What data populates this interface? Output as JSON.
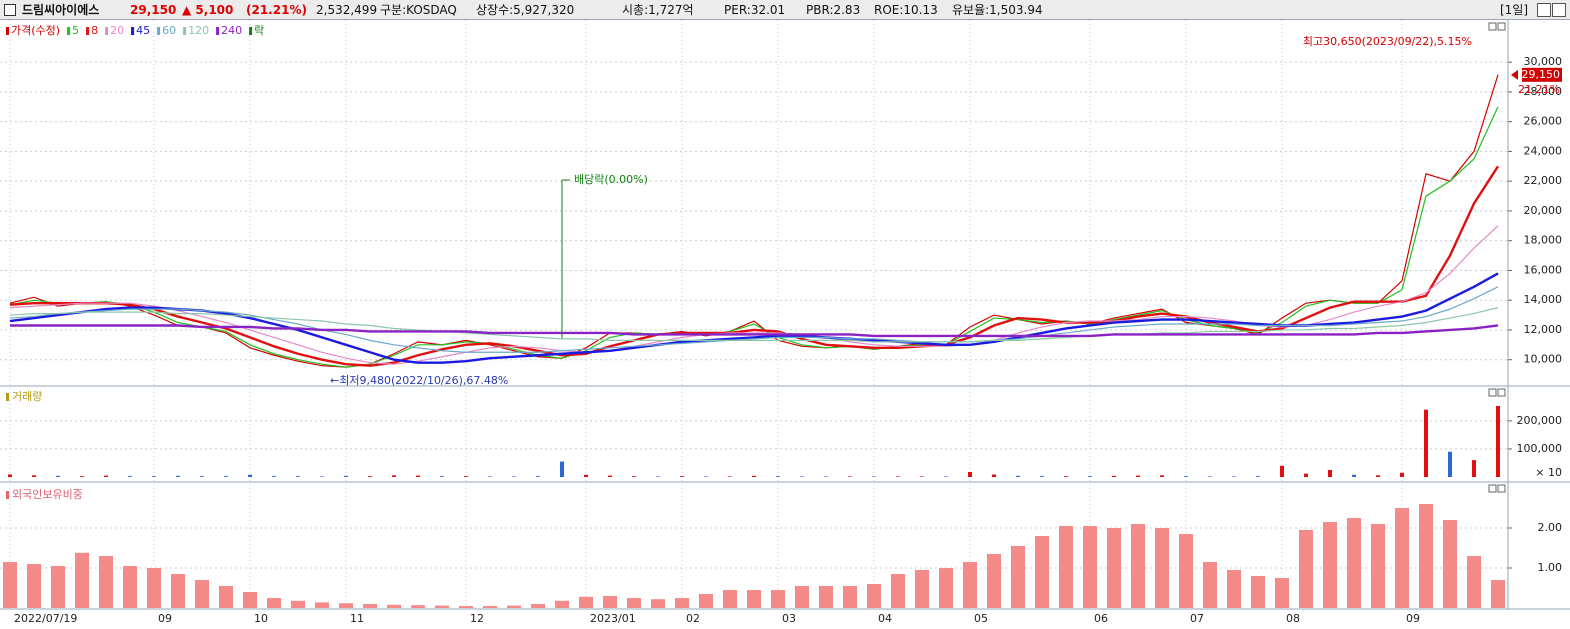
{
  "header": {
    "name": "드림씨아이에스",
    "price": "29,150",
    "change": "▲ 5,100",
    "change_pct": "(21.21%)",
    "volume": "2,532,499",
    "market": "구분:KOSDAQ",
    "shares": "상장수:5,927,320",
    "cap": "시총:1,727억",
    "per": "PER:32.01",
    "pbr": "PBR:2.83",
    "roe": "ROE:10.13",
    "reserve": "유보율:1,503.94",
    "period": "[1일]"
  },
  "chart_data": [
    {
      "type": "line",
      "categories": [
        "2022/07/19",
        null,
        null,
        null,
        null,
        null,
        "09",
        null,
        null,
        null,
        "10",
        null,
        null,
        null,
        "11",
        null,
        null,
        null,
        null,
        "12",
        null,
        null,
        null,
        null,
        "2023/01",
        null,
        null,
        null,
        "02",
        null,
        null,
        null,
        "03",
        null,
        null,
        null,
        "04",
        null,
        null,
        null,
        "05",
        null,
        null,
        null,
        null,
        "06",
        null,
        null,
        null,
        "07",
        null,
        null,
        null,
        "08",
        null,
        null,
        null,
        null,
        "09",
        null,
        null,
        null,
        null
      ],
      "series": [
        {
          "name": "가격(수정)",
          "color": "#d40000",
          "values": [
            13800,
            14200,
            13600,
            13800,
            13900,
            13600,
            13000,
            12300,
            12200,
            11800,
            10800,
            10300,
            9900,
            9600,
            9500,
            9700,
            10400,
            11200,
            11000,
            11300,
            11000,
            10600,
            10200,
            10100,
            10800,
            11800,
            11800,
            11700,
            11900,
            11600,
            11900,
            12600,
            11300,
            10900,
            10800,
            10900,
            10700,
            10900,
            11100,
            11000,
            12200,
            13000,
            12700,
            12400,
            12600,
            12400,
            12800,
            13100,
            13400,
            12500,
            12300,
            12100,
            11700,
            12800,
            13800,
            14000,
            13800,
            13800,
            15300,
            22500,
            22000,
            24000,
            29150
          ]
        },
        {
          "name": "5",
          "color": "#20c020",
          "values": [
            13700,
            14000,
            13800,
            13800,
            13900,
            13700,
            13200,
            12500,
            12200,
            11900,
            11000,
            10400,
            10000,
            9700,
            9500,
            9700,
            10300,
            11000,
            11000,
            11200,
            11100,
            10700,
            10300,
            10100,
            10600,
            11500,
            11800,
            11700,
            11800,
            11700,
            11900,
            12400,
            11500,
            11000,
            10800,
            10900,
            10700,
            10900,
            11000,
            11000,
            11900,
            12800,
            12700,
            12500,
            12600,
            12400,
            12700,
            13000,
            13300,
            12700,
            12300,
            12100,
            11800,
            12500,
            13600,
            14000,
            13800,
            13800,
            14700,
            21000,
            22000,
            23500,
            27000
          ]
        },
        {
          "name": "8",
          "color": "#e01010",
          "values": [
            13700,
            13800,
            13800,
            13800,
            13800,
            13700,
            13400,
            12900,
            12500,
            12100,
            11500,
            10900,
            10400,
            10000,
            9700,
            9600,
            9800,
            10300,
            10700,
            11000,
            11100,
            10900,
            10600,
            10300,
            10400,
            10900,
            11300,
            11700,
            11800,
            11800,
            11800,
            12000,
            11900,
            11400,
            11000,
            10900,
            10800,
            10800,
            10900,
            11000,
            11500,
            12300,
            12800,
            12700,
            12500,
            12500,
            12600,
            12900,
            13100,
            12900,
            12500,
            12200,
            11900,
            12100,
            12800,
            13500,
            13900,
            13900,
            13900,
            14300,
            17000,
            20500,
            23000
          ]
        },
        {
          "name": "20",
          "color": "#e58ac8",
          "values": [
            13500,
            13600,
            13700,
            13800,
            13800,
            13800,
            13600,
            13300,
            12900,
            12500,
            12000,
            11500,
            11000,
            10500,
            10100,
            9800,
            9700,
            9900,
            10200,
            10500,
            10800,
            10900,
            10800,
            10600,
            10500,
            10600,
            10900,
            11200,
            11500,
            11700,
            11800,
            11800,
            11800,
            11700,
            11500,
            11200,
            11000,
            10900,
            10900,
            10900,
            11000,
            11300,
            11800,
            12200,
            12500,
            12600,
            12600,
            12700,
            12900,
            12900,
            12800,
            12600,
            12300,
            12200,
            12300,
            12700,
            13200,
            13600,
            13900,
            14500,
            15800,
            17500,
            19000
          ]
        },
        {
          "name": "45",
          "color": "#1a1ae0",
          "values": [
            12600,
            12800,
            13000,
            13200,
            13400,
            13500,
            13500,
            13400,
            13300,
            13100,
            12800,
            12400,
            12000,
            11500,
            11000,
            10500,
            10000,
            9800,
            9800,
            9900,
            10100,
            10200,
            10300,
            10400,
            10500,
            10600,
            10800,
            11000,
            11200,
            11300,
            11400,
            11500,
            11600,
            11600,
            11500,
            11400,
            11300,
            11200,
            11100,
            11000,
            11000,
            11200,
            11500,
            11800,
            12100,
            12300,
            12500,
            12600,
            12700,
            12700,
            12600,
            12500,
            12400,
            12300,
            12300,
            12400,
            12500,
            12700,
            12900,
            13300,
            14100,
            14900,
            15800
          ]
        },
        {
          "name": "60",
          "color": "#6aa9c8",
          "values": [
            12800,
            12900,
            13100,
            13200,
            13300,
            13400,
            13400,
            13400,
            13300,
            13200,
            13000,
            12700,
            12400,
            12000,
            11700,
            11300,
            11000,
            10800,
            10600,
            10500,
            10500,
            10500,
            10500,
            10600,
            10700,
            10800,
            10900,
            11000,
            11100,
            11200,
            11300,
            11400,
            11500,
            11500,
            11500,
            11400,
            11400,
            11300,
            11200,
            11200,
            11200,
            11300,
            11400,
            11600,
            11800,
            12000,
            12200,
            12300,
            12400,
            12400,
            12400,
            12400,
            12300,
            12300,
            12300,
            12300,
            12400,
            12500,
            12600,
            12900,
            13400,
            14100,
            14900
          ]
        },
        {
          "name": "120",
          "color": "#8cc8a8",
          "values": [
            13000,
            13100,
            13100,
            13200,
            13200,
            13200,
            13200,
            13100,
            13100,
            13000,
            12900,
            12800,
            12700,
            12600,
            12400,
            12300,
            12100,
            12000,
            11900,
            11800,
            11700,
            11600,
            11500,
            11400,
            11400,
            11300,
            11300,
            11300,
            11300,
            11300,
            11300,
            11300,
            11300,
            11300,
            11300,
            11300,
            11200,
            11200,
            11200,
            11200,
            11200,
            11300,
            11300,
            11400,
            11500,
            11600,
            11700,
            11700,
            11800,
            11800,
            11900,
            11900,
            11900,
            12000,
            12000,
            12100,
            12100,
            12200,
            12300,
            12500,
            12800,
            13100,
            13500
          ]
        },
        {
          "name": "240",
          "color": "#8a22c4",
          "values": [
            12300,
            12300,
            12300,
            12300,
            12300,
            12300,
            12300,
            12300,
            12200,
            12200,
            12200,
            12100,
            12100,
            12000,
            12000,
            11900,
            11900,
            11900,
            11900,
            11900,
            11800,
            11800,
            11800,
            11800,
            11800,
            11800,
            11700,
            11700,
            11700,
            11700,
            11700,
            11700,
            11700,
            11700,
            11700,
            11700,
            11600,
            11600,
            11600,
            11600,
            11600,
            11600,
            11600,
            11600,
            11600,
            11600,
            11700,
            11700,
            11700,
            11700,
            11700,
            11700,
            11700,
            11700,
            11700,
            11700,
            11700,
            11800,
            11800,
            11900,
            12000,
            12100,
            12300
          ]
        }
      ],
      "ex_dividend_legend": "락",
      "ex_dividend_color": "#108010",
      "annotations": {
        "dividend": "배당락(0.00%)",
        "high": "최고30,650(2023/09/22),5.15%",
        "low": "←최저9,480(2022/10/26),67.48%"
      },
      "last_label": "29,150",
      "last_change": "21.21%",
      "ylim": [
        8300,
        32700
      ],
      "yticks": [
        {
          "value": 10000,
          "label": "10,000"
        },
        {
          "value": 12000,
          "label": "12,000"
        },
        {
          "value": 14000,
          "label": "14,000"
        },
        {
          "value": 16000,
          "label": "16,000"
        },
        {
          "value": 18000,
          "label": "18,000"
        },
        {
          "value": 20000,
          "label": "20,000"
        },
        {
          "value": 22000,
          "label": "22,000"
        },
        {
          "value": 24000,
          "label": "24,000"
        },
        {
          "value": 26000,
          "label": "26,000"
        },
        {
          "value": 28000,
          "label": "28,000"
        },
        {
          "value": 30000,
          "label": "30,000"
        }
      ],
      "grid": true
    },
    {
      "type": "bar",
      "title": "거래량",
      "title_color": "#b89a10",
      "values": [
        9000,
        6000,
        4000,
        3000,
        5000,
        3000,
        3000,
        4000,
        3000,
        3000,
        8000,
        3000,
        3000,
        2000,
        4000,
        3000,
        6000,
        5000,
        3000,
        3000,
        2000,
        2000,
        3000,
        55000,
        8000,
        5000,
        3000,
        2000,
        3000,
        2000,
        2000,
        4000,
        3000,
        2000,
        2000,
        2000,
        2000,
        2000,
        2000,
        2000,
        18000,
        9000,
        4000,
        3000,
        3000,
        3000,
        4000,
        5000,
        6000,
        3000,
        2000,
        2000,
        3000,
        40000,
        12000,
        25000,
        8000,
        6000,
        15000,
        240000,
        90000,
        60000,
        253000
      ],
      "up_color": "#e01010",
      "down_color": "#2a6ad8",
      "unit_label": "× 10",
      "ylim": [
        0,
        310000
      ],
      "yticks": [
        {
          "value": 100000,
          "label": "100,000"
        },
        {
          "value": 200000,
          "label": "200,000"
        }
      ],
      "grid": true
    },
    {
      "type": "bar",
      "title": "외국인보유비중",
      "title_color": "#e06070",
      "color": "#f48a8a",
      "values": [
        1.15,
        1.1,
        1.05,
        1.38,
        1.3,
        1.05,
        1.0,
        0.85,
        0.7,
        0.55,
        0.4,
        0.25,
        0.18,
        0.14,
        0.12,
        0.1,
        0.08,
        0.07,
        0.06,
        0.05,
        0.05,
        0.06,
        0.1,
        0.18,
        0.28,
        0.3,
        0.25,
        0.22,
        0.25,
        0.35,
        0.45,
        0.45,
        0.45,
        0.55,
        0.55,
        0.55,
        0.6,
        0.85,
        0.95,
        1.0,
        1.15,
        1.35,
        1.55,
        1.8,
        2.05,
        2.05,
        2.0,
        2.1,
        2.0,
        1.85,
        1.15,
        0.95,
        0.8,
        0.75,
        1.95,
        2.15,
        2.25,
        2.1,
        2.5,
        2.6,
        2.2,
        1.3,
        0.7
      ],
      "ylim": [
        0,
        3
      ],
      "yticks": [
        {
          "value": 1,
          "label": "1.00"
        },
        {
          "value": 2,
          "label": "2.00"
        }
      ],
      "grid": true
    }
  ]
}
